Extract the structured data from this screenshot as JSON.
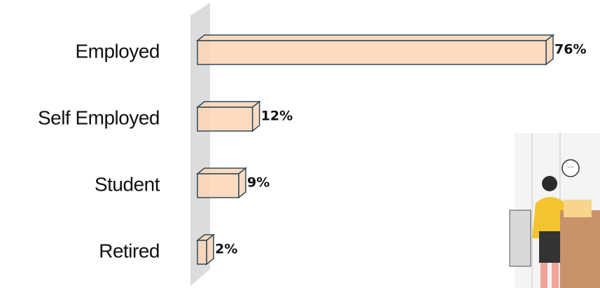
{
  "chart_data": {
    "type": "bar3d-horizontal",
    "categories": [
      "Employed",
      "Self Employed",
      "Student",
      "Retired"
    ],
    "values": [
      76,
      12,
      9,
      2
    ],
    "value_labels": [
      "76%",
      "12%",
      "9%",
      "2%"
    ],
    "color": "#fbd5b5",
    "edge_color": "#2e4a5a"
  }
}
